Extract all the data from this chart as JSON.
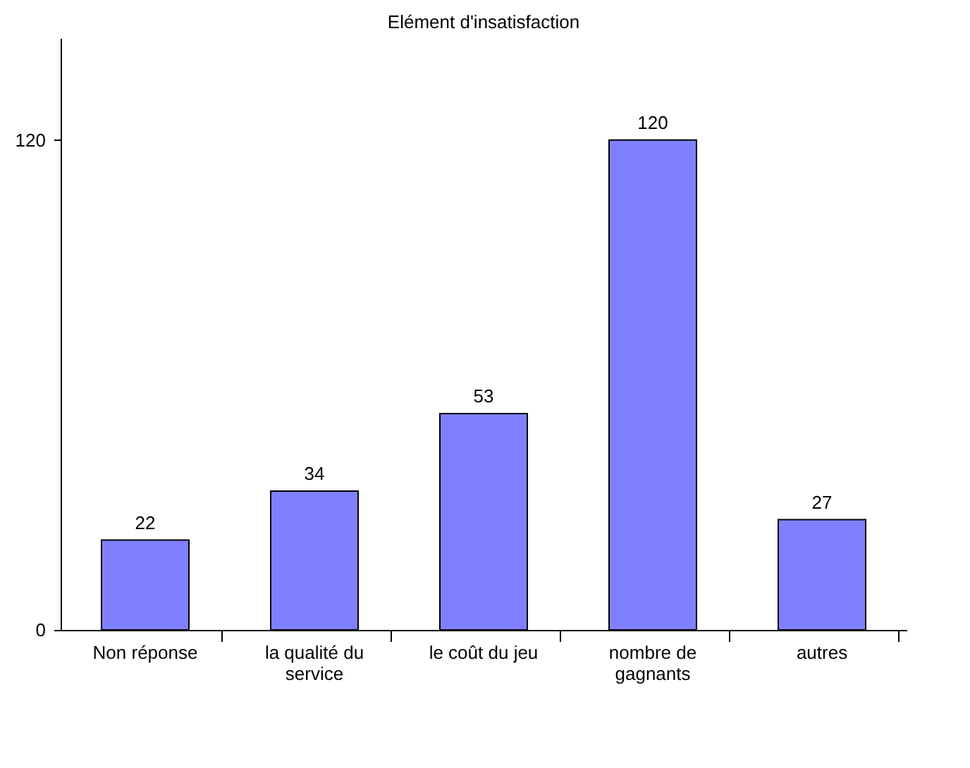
{
  "chart_data": {
    "type": "bar",
    "title": "Elément d'insatisfaction",
    "categories": [
      "Non réponse",
      "la qualité du service",
      "le coût du jeu",
      "nombre de gagnants",
      "autres"
    ],
    "values": [
      22,
      34,
      53,
      120,
      27
    ],
    "color": "#8080ff",
    "ylim": [
      0,
      145
    ],
    "yticks": [
      0,
      120
    ],
    "data_labels": true,
    "grid": false
  }
}
